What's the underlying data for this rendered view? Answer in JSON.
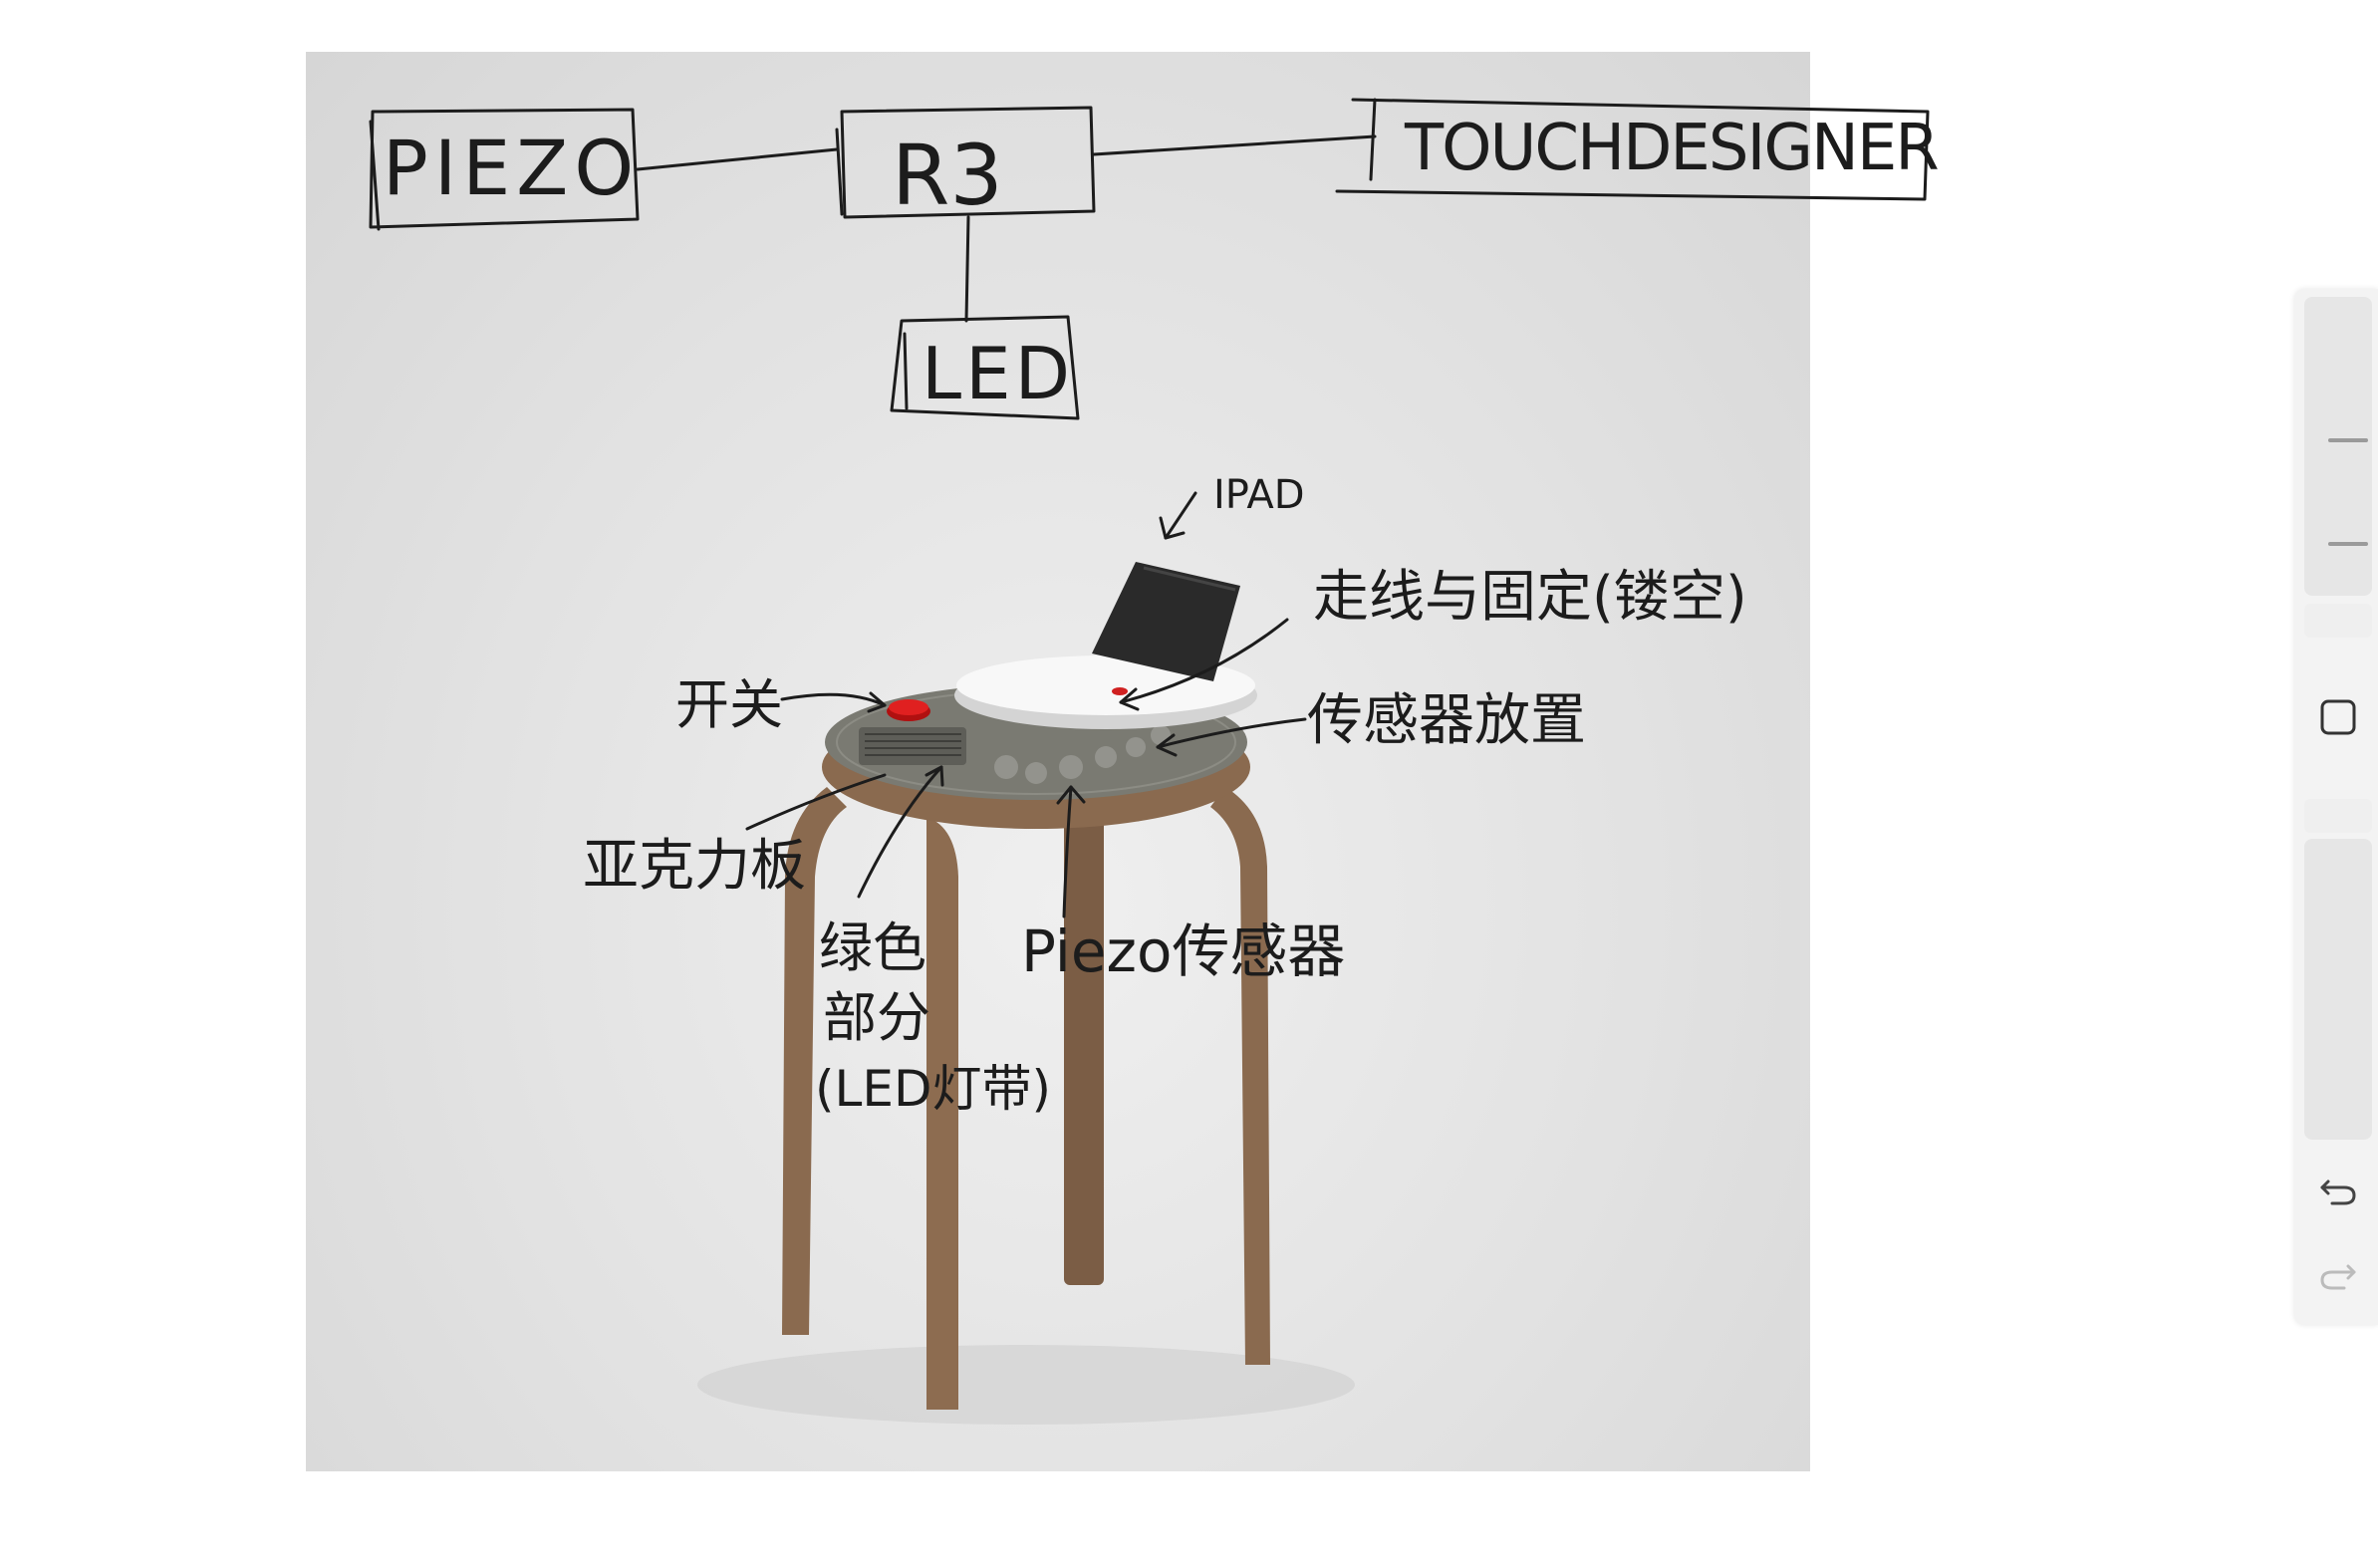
{
  "diagram": {
    "nodes": {
      "piezo": "PIEZO",
      "r3": "R3",
      "touchdesigner": "TOUCHDESIGNER",
      "led": "LED"
    }
  },
  "annotations": {
    "ipad": "IPAD",
    "wiring": "走线与固定(镂空)",
    "switch": "开关",
    "sensor_place": "传感器放置",
    "acrylic": "亚克力板",
    "green_line1": "绿色",
    "green_line2": "部分",
    "green_line3": "(LED灯带)",
    "piezo_sensor": "Piezo传感器"
  },
  "toolbar": {
    "tools": [
      "brush-size-slider",
      "square-tool",
      "opacity-slider",
      "undo",
      "redo"
    ]
  },
  "colors": {
    "ink": "#1c1c1c",
    "stool_wood": "#8a6a4f",
    "seat_top": "#77776f",
    "button_red": "#e02020",
    "tablet": "#2a2a2a"
  }
}
